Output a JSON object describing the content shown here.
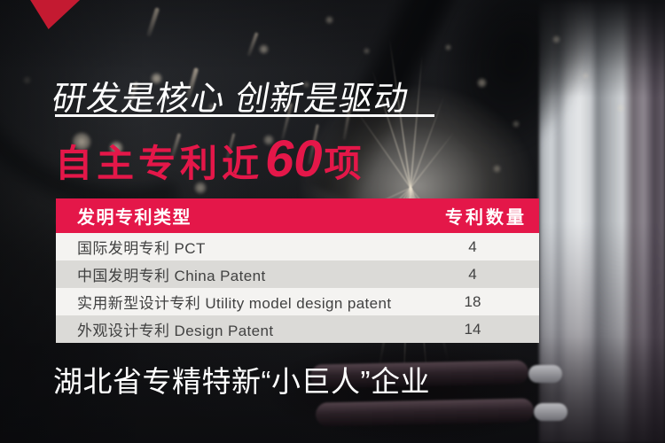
{
  "hero": {
    "heading": "研发是核心 创新是驱动",
    "headline_prefix": "自主专利近",
    "headline_number": "60",
    "headline_suffix": "项",
    "footer_line": "湖北省专精特新“小巨人”企业"
  },
  "patent_table": {
    "header": {
      "type_label": "发明专利类型",
      "count_label": "专利数量"
    },
    "rows": [
      {
        "type": "国际发明专利  PCT",
        "count": "4"
      },
      {
        "type": "中国发明专利  China Patent",
        "count": "4"
      },
      {
        "type": "实用新型设计专利  Utility model design patent",
        "count": "18"
      },
      {
        "type": "外观设计专利  Design Patent",
        "count": "14"
      }
    ]
  },
  "colors": {
    "accent": "#e41749",
    "ribbon": "#c41a31",
    "row_light": "#f4f3f1",
    "row_dark": "#dbdad7"
  }
}
